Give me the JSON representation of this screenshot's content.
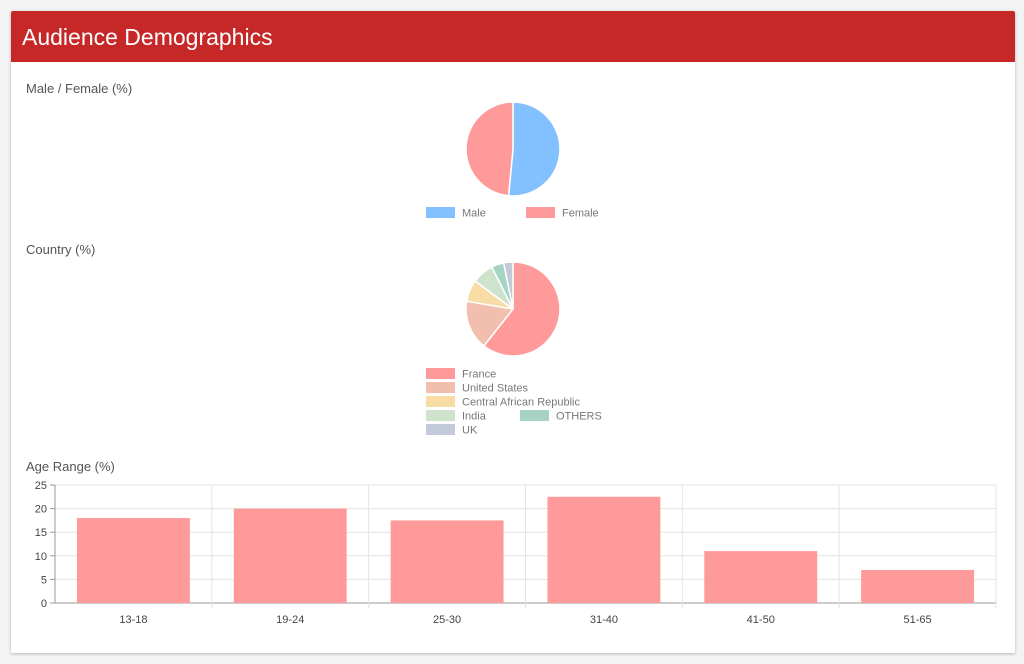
{
  "header": {
    "title": "Audience Demographics"
  },
  "colors": {
    "header": "#c62828"
  },
  "gender": {
    "title": "Male / Female (%)",
    "chart_data": {
      "type": "pie",
      "labels": [
        "Male",
        "Female"
      ],
      "values": [
        51.5,
        48.5
      ],
      "colors": [
        "#82c0ff",
        "#ff9a9a"
      ]
    }
  },
  "country": {
    "title": "Country (%)",
    "chart_data": {
      "type": "pie",
      "labels": [
        "France",
        "United States",
        "Central African Republic",
        "India",
        "OTHERS",
        "UK"
      ],
      "values": [
        57,
        16,
        7,
        7,
        4,
        3
      ],
      "colors": [
        "#ff9a9a",
        "#f2bfae",
        "#f7dca6",
        "#cfe3cc",
        "#a7d3c4",
        "#c2c9d8"
      ]
    }
  },
  "age": {
    "title": "Age Range (%)",
    "chart_data": {
      "type": "bar",
      "categories": [
        "13-18",
        "19-24",
        "25-30",
        "31-40",
        "41-50",
        "51-65"
      ],
      "values": [
        18,
        20,
        17.5,
        22.5,
        11,
        7
      ],
      "ylim": [
        0,
        25
      ],
      "yticks": [
        0,
        5,
        10,
        15,
        20,
        25
      ],
      "grid": true,
      "color": "#ff9a9a"
    }
  }
}
